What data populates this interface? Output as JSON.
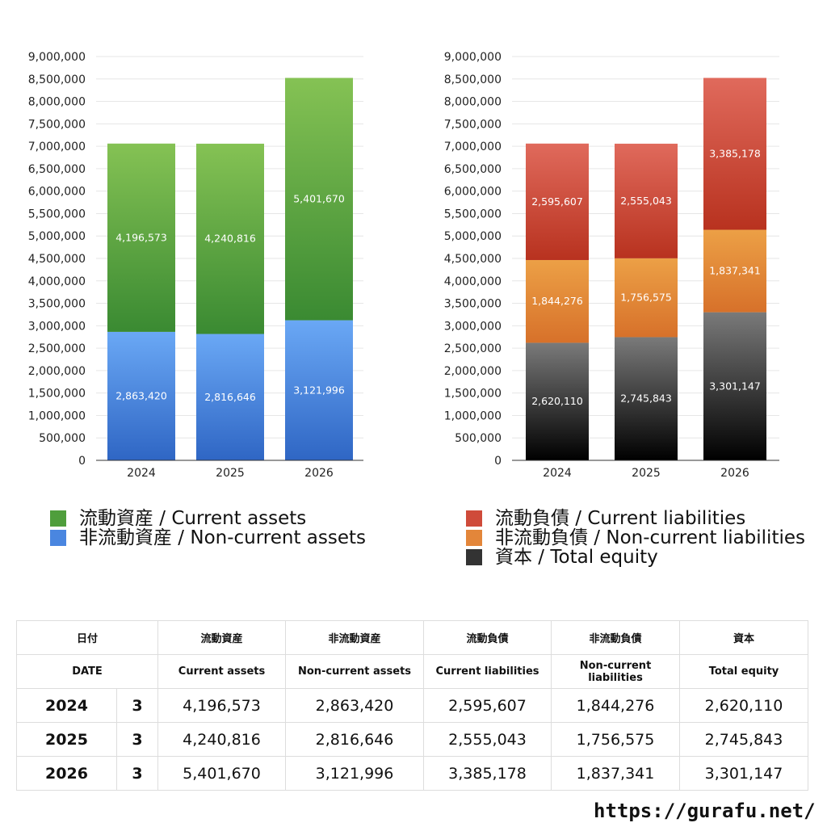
{
  "chart_data": [
    {
      "type": "bar",
      "stacked": true,
      "categories": [
        "2024",
        "2025",
        "2026"
      ],
      "ylim": [
        0,
        9000000
      ],
      "ytick_step": 500000,
      "yticks": [
        "0",
        "500,000",
        "1,000,000",
        "1,500,000",
        "2,000,000",
        "2,500,000",
        "3,000,000",
        "3,500,000",
        "4,000,000",
        "4,500,000",
        "5,000,000",
        "5,500,000",
        "6,000,000",
        "6,500,000",
        "7,000,000",
        "7,500,000",
        "8,000,000",
        "8,500,000",
        "9,000,000"
      ],
      "grid": true,
      "legend_position": "bottom",
      "series": [
        {
          "name": "非流動資産 / Non-current assets",
          "values": [
            2863420,
            2816646,
            3121996
          ],
          "labels": [
            "2,863,420",
            "2,816,646",
            "3,121,996"
          ],
          "color_top": "#6aa8f5",
          "color_bottom": "#2f66c4"
        },
        {
          "name": "流動資産 / Current assets",
          "values": [
            4196573,
            4240816,
            5401670
          ],
          "labels": [
            "4,196,573",
            "4,240,816",
            "5,401,670"
          ],
          "color_top": "#85c254",
          "color_bottom": "#3a8a32"
        }
      ]
    },
    {
      "type": "bar",
      "stacked": true,
      "categories": [
        "2024",
        "2025",
        "2026"
      ],
      "ylim": [
        0,
        9000000
      ],
      "ytick_step": 500000,
      "yticks": [
        "0",
        "500,000",
        "1,000,000",
        "1,500,000",
        "2,000,000",
        "2,500,000",
        "3,000,000",
        "3,500,000",
        "4,000,000",
        "4,500,000",
        "5,000,000",
        "5,500,000",
        "6,000,000",
        "6,500,000",
        "7,000,000",
        "7,500,000",
        "8,000,000",
        "8,500,000",
        "9,000,000"
      ],
      "grid": true,
      "legend_position": "bottom",
      "series": [
        {
          "name": "資本 / Total equity",
          "values": [
            2620110,
            2745843,
            3301147
          ],
          "labels": [
            "2,620,110",
            "2,745,843",
            "3,301,147"
          ],
          "color_top": "#7a7a7a",
          "color_bottom": "#000000"
        },
        {
          "name": "非流動負債 / Non-current liabilities",
          "values": [
            1844276,
            1756575,
            1837341
          ],
          "labels": [
            "1,844,276",
            "1,756,575",
            "1,837,341"
          ],
          "color_top": "#eca046",
          "color_bottom": "#d7712a"
        },
        {
          "name": "流動負債 / Current liabilities",
          "values": [
            2595607,
            2555043,
            3385178
          ],
          "labels": [
            "2,595,607",
            "2,555,043",
            "3,385,178"
          ],
          "color_top": "#e06a5c",
          "color_bottom": "#b8321f"
        }
      ]
    }
  ],
  "legend_left": [
    {
      "label": "流動資産 / Current assets",
      "color": "#4f9e3c"
    },
    {
      "label": "非流動資産 / Non-current assets",
      "color": "#4a86e0"
    }
  ],
  "legend_right": [
    {
      "label": "流動負債 / Current liabilities",
      "color": "#cf4b3a"
    },
    {
      "label": "非流動負債 / Non-current liabilities",
      "color": "#e3863a"
    },
    {
      "label": "資本 / Total equity",
      "color": "#333333"
    }
  ],
  "table": {
    "headers_jp": [
      "日付",
      "流動資産",
      "非流動資産",
      "流動負債",
      "非流動負債",
      "資本"
    ],
    "headers_en": [
      "DATE",
      "Current assets",
      "Non-current assets",
      "Current liabilities",
      "Non-current liabilities",
      "Total equity"
    ],
    "rows": [
      {
        "year": "2024",
        "count": "3",
        "values": [
          "4,196,573",
          "2,863,420",
          "2,595,607",
          "1,844,276",
          "2,620,110"
        ]
      },
      {
        "year": "2025",
        "count": "3",
        "values": [
          "4,240,816",
          "2,816,646",
          "2,555,043",
          "1,756,575",
          "2,745,843"
        ]
      },
      {
        "year": "2026",
        "count": "3",
        "values": [
          "5,401,670",
          "3,121,996",
          "3,385,178",
          "1,837,341",
          "3,301,147"
        ]
      }
    ]
  },
  "footer": "https://gurafu.net/"
}
